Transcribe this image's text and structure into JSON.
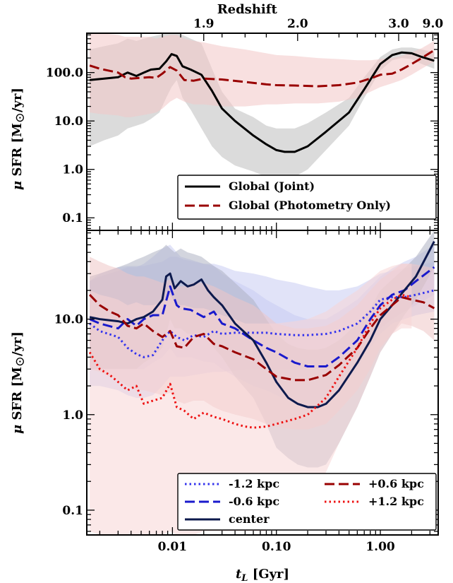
{
  "chart_data": [
    {
      "type": "line",
      "panel": "top",
      "xlabel": "t_L [Gyr]",
      "xlabel_var": "t",
      "xlabel_sub": "L",
      "xlabel_unit": " [Gyr]",
      "ylabel": "μ SFR [M⊙/yr]",
      "ylabel_mu": "μ",
      "ylabel_text": " SFR [M",
      "ylabel_sun": "⊙",
      "ylabel_end": "/yr]",
      "x_scale": "log",
      "y_scale": "log",
      "xlim": [
        0.0015,
        3.6
      ],
      "ylim": [
        0.055,
        650
      ],
      "yticks": [
        0.1,
        1.0,
        10.0,
        100.0
      ],
      "ytick_labels": [
        "0.1",
        "1.0",
        "10.0",
        "100.0"
      ],
      "top_axis": {
        "label": "Redshift",
        "ticks": [
          {
            "t": 0.02,
            "label": "1.9"
          },
          {
            "t": 0.16,
            "label": "2.0"
          },
          {
            "t": 1.5,
            "label": "3.0"
          },
          {
            "t": 3.2,
            "label": "9.0"
          }
        ]
      },
      "legend": {
        "position": "lower-right",
        "entries": [
          "Global (Joint)",
          "Global (Photometry Only)"
        ]
      },
      "series": [
        {
          "name": "Global (Joint)",
          "color": "#000000",
          "style": "solid",
          "band_color": "#bdbdbd",
          "x": [
            0.0016,
            0.0022,
            0.003,
            0.0037,
            0.0045,
            0.0053,
            0.0062,
            0.0075,
            0.0087,
            0.0098,
            0.011,
            0.0125,
            0.015,
            0.019,
            0.024,
            0.03,
            0.04,
            0.06,
            0.08,
            0.1,
            0.12,
            0.15,
            0.2,
            0.3,
            0.5,
            0.7,
            1.0,
            1.3,
            1.6,
            2.0,
            2.5,
            3.3
          ],
          "y": [
            70,
            75,
            80,
            100,
            85,
            100,
            115,
            120,
            170,
            240,
            220,
            135,
            115,
            90,
            42,
            18,
            10,
            5,
            3.3,
            2.5,
            2.3,
            2.3,
            3,
            6,
            15,
            45,
            150,
            230,
            260,
            250,
            210,
            175
          ],
          "lo": [
            3,
            4,
            5,
            7,
            8,
            9,
            11,
            15,
            30,
            50,
            70,
            30,
            17,
            7,
            3,
            1.8,
            1.2,
            0.9,
            0.7,
            0.6,
            0.6,
            0.7,
            1,
            2.5,
            8,
            30,
            110,
            180,
            200,
            190,
            150,
            120
          ],
          "hi": [
            300,
            350,
            400,
            500,
            450,
            500,
            550,
            600,
            650,
            650,
            650,
            600,
            500,
            400,
            120,
            40,
            18,
            12,
            8,
            7,
            7,
            7,
            9,
            15,
            30,
            80,
            210,
            300,
            330,
            330,
            300,
            260
          ]
        },
        {
          "name": "Global (Photometry Only)",
          "color": "#990000",
          "style": "dashed",
          "band_color": "#f2c7c7",
          "x": [
            0.0016,
            0.002,
            0.003,
            0.0035,
            0.004,
            0.005,
            0.006,
            0.007,
            0.008,
            0.0095,
            0.011,
            0.013,
            0.016,
            0.02,
            0.03,
            0.05,
            0.08,
            0.1,
            0.15,
            0.25,
            0.4,
            0.6,
            0.8,
            1.0,
            1.3,
            1.6,
            2.0,
            2.5,
            3.3
          ],
          "y": [
            140,
            120,
            100,
            80,
            75,
            78,
            80,
            78,
            95,
            130,
            110,
            70,
            68,
            75,
            72,
            64,
            57,
            55,
            54,
            52,
            55,
            62,
            75,
            90,
            95,
            115,
            150,
            200,
            290
          ],
          "lo": [
            15,
            14,
            13,
            12,
            12,
            13,
            14,
            15,
            18,
            25,
            30,
            25,
            22,
            22,
            20,
            20,
            22,
            22,
            23,
            23,
            25,
            30,
            40,
            50,
            60,
            70,
            90,
            120,
            170
          ],
          "hi": [
            650,
            650,
            600,
            550,
            550,
            550,
            550,
            500,
            550,
            600,
            600,
            500,
            450,
            420,
            350,
            300,
            250,
            230,
            220,
            200,
            190,
            180,
            180,
            190,
            200,
            220,
            260,
            320,
            450
          ]
        }
      ]
    },
    {
      "type": "line",
      "panel": "bottom",
      "xlabel": "t_L [Gyr]",
      "ylabel": "μ SFR [M⊙/yr]",
      "x_scale": "log",
      "y_scale": "log",
      "xlim": [
        0.0015,
        3.6
      ],
      "ylim": [
        0.055,
        85
      ],
      "xticks": [
        0.01,
        0.1,
        1.0
      ],
      "xtick_labels": [
        "0.01",
        "0.10",
        "1.00"
      ],
      "yticks": [
        0.1,
        1.0,
        10.0
      ],
      "ytick_labels": [
        "0.1",
        "1.0",
        "10.0"
      ],
      "legend": {
        "position": "lower-right",
        "columns": 2,
        "entries": [
          "-1.2 kpc",
          "+0.6 kpc",
          "-0.6 kpc",
          "+1.2 kpc",
          "center"
        ]
      },
      "series": [
        {
          "name": "-1.2 kpc",
          "color": "#3333ee",
          "style": "dotted",
          "band_color": "#c8ccf2",
          "x": [
            0.0016,
            0.002,
            0.003,
            0.0037,
            0.0045,
            0.0053,
            0.0065,
            0.008,
            0.0095,
            0.011,
            0.013,
            0.016,
            0.02,
            0.025,
            0.03,
            0.04,
            0.06,
            0.08,
            0.1,
            0.15,
            0.2,
            0.3,
            0.4,
            0.6,
            0.8,
            1.0,
            1.3,
            1.7,
            2.2,
            3.3
          ],
          "y": [
            9,
            7.5,
            6.5,
            5,
            4.3,
            4,
            4.2,
            6,
            7.5,
            6.5,
            6,
            6.8,
            6.5,
            7.5,
            7,
            7.2,
            7.2,
            7.2,
            7,
            6.8,
            6.8,
            7,
            7.5,
            9,
            12,
            16,
            17,
            17,
            18,
            20
          ],
          "lo": [
            2,
            2,
            1.8,
            1.6,
            1.5,
            1.5,
            1.6,
            2,
            2.5,
            2.5,
            2.5,
            2.6,
            2.7,
            2.8,
            2.8,
            2.9,
            3,
            3,
            3,
            3,
            3,
            3,
            3.3,
            4,
            5,
            7,
            9,
            10,
            11,
            12
          ],
          "hi": [
            25,
            30,
            35,
            36,
            36,
            36,
            38,
            40,
            45,
            45,
            42,
            40,
            38,
            38,
            36,
            32,
            30,
            28,
            26,
            24,
            22,
            20,
            20,
            22,
            26,
            30,
            32,
            34,
            36,
            40
          ]
        },
        {
          "name": "-0.6 kpc",
          "color": "#1a1acc",
          "style": "dashed",
          "band_color": "#c8ccf2",
          "x": [
            0.0016,
            0.002,
            0.003,
            0.0037,
            0.0045,
            0.0053,
            0.0065,
            0.008,
            0.0095,
            0.011,
            0.012,
            0.015,
            0.02,
            0.025,
            0.03,
            0.04,
            0.06,
            0.08,
            0.1,
            0.15,
            0.2,
            0.3,
            0.4,
            0.6,
            0.8,
            1.0,
            1.3,
            1.7,
            2.2,
            3.3
          ],
          "y": [
            10,
            9,
            8,
            10,
            8.5,
            10,
            11,
            11,
            22,
            14,
            13,
            12.5,
            10.5,
            12,
            9,
            8,
            6,
            5,
            4.5,
            3.5,
            3.2,
            3.2,
            4,
            6,
            10,
            14,
            18,
            20,
            25,
            35
          ],
          "lo": [
            3,
            3,
            3,
            3,
            3,
            3,
            3.5,
            4,
            5,
            4,
            4,
            4,
            3.6,
            3.5,
            3,
            2.5,
            2,
            1.8,
            1.6,
            1.3,
            1.2,
            1.3,
            1.8,
            3,
            5.5,
            8,
            10,
            12,
            14,
            18
          ],
          "hi": [
            25,
            28,
            32,
            35,
            35,
            38,
            45,
            55,
            60,
            50,
            45,
            42,
            38,
            36,
            30,
            25,
            20,
            16,
            14,
            11,
            10,
            10,
            12,
            16,
            22,
            28,
            34,
            40,
            45,
            60
          ]
        },
        {
          "name": "center",
          "color": "#0d1a4d",
          "style": "solid",
          "band_color": "#aeb3c2",
          "x": [
            0.0016,
            0.002,
            0.003,
            0.0037,
            0.0045,
            0.0053,
            0.0065,
            0.008,
            0.0087,
            0.0095,
            0.0105,
            0.012,
            0.014,
            0.016,
            0.019,
            0.022,
            0.025,
            0.03,
            0.04,
            0.06,
            0.08,
            0.1,
            0.13,
            0.16,
            0.2,
            0.25,
            0.3,
            0.4,
            0.6,
            0.8,
            1.0,
            1.3,
            1.7,
            2.2,
            3.3
          ],
          "y": [
            10.5,
            10,
            9.5,
            9,
            10,
            10.5,
            12,
            16,
            28,
            30,
            21,
            25,
            22,
            23,
            26,
            20,
            17,
            14,
            9,
            6,
            3.5,
            2.2,
            1.5,
            1.3,
            1.2,
            1.2,
            1.3,
            1.8,
            3.5,
            6,
            10,
            14,
            20,
            28,
            65
          ],
          "lo": [
            3,
            3,
            3,
            3,
            3,
            3.5,
            4,
            5,
            7,
            10,
            8,
            8,
            7,
            7,
            7,
            6,
            5,
            4,
            2.5,
            1.5,
            0.8,
            0.45,
            0.35,
            0.3,
            0.28,
            0.28,
            0.3,
            0.5,
            1.2,
            2.5,
            4.5,
            7,
            11,
            16,
            35
          ],
          "hi": [
            28,
            30,
            35,
            38,
            42,
            45,
            50,
            55,
            60,
            55,
            50,
            55,
            50,
            48,
            45,
            40,
            36,
            32,
            24,
            16,
            10,
            7,
            5.5,
            5,
            4.8,
            4.8,
            5,
            6,
            9,
            13,
            20,
            26,
            34,
            45,
            85
          ]
        },
        {
          "name": "+0.6 kpc",
          "color": "#990000",
          "style": "dashed",
          "band_color": "#efc7c7",
          "x": [
            0.0016,
            0.002,
            0.0025,
            0.003,
            0.0037,
            0.0045,
            0.0053,
            0.0065,
            0.008,
            0.0095,
            0.011,
            0.013,
            0.016,
            0.02,
            0.025,
            0.03,
            0.04,
            0.06,
            0.08,
            0.1,
            0.15,
            0.2,
            0.3,
            0.4,
            0.6,
            0.8,
            1.0,
            1.3,
            1.6,
            2.0,
            2.6,
            3.3
          ],
          "y": [
            18,
            14,
            12,
            11,
            8.5,
            8,
            9,
            7.5,
            6.5,
            7.5,
            5.2,
            5,
            6.5,
            7,
            5.5,
            5.2,
            4.5,
            3.8,
            3,
            2.5,
            2.3,
            2.3,
            2.6,
            3.3,
            5,
            8,
            11,
            14,
            17,
            16,
            15,
            13
          ],
          "lo": [
            3,
            2.8,
            2.5,
            2.3,
            2,
            1.8,
            1.8,
            1.7,
            1.6,
            1.7,
            1.4,
            1.3,
            1.4,
            1.4,
            1.2,
            1.1,
            1,
            0.9,
            0.8,
            0.75,
            0.7,
            0.7,
            0.8,
            1.1,
            1.8,
            3,
            5,
            7,
            9,
            8.5,
            7.5,
            6
          ],
          "hi": [
            45,
            40,
            36,
            34,
            30,
            28,
            28,
            26,
            24,
            26,
            22,
            22,
            24,
            24,
            22,
            20,
            17,
            14,
            11,
            9,
            8,
            8,
            8.5,
            10,
            14,
            20,
            26,
            32,
            38,
            38,
            36,
            34
          ]
        },
        {
          "name": "+1.2 kpc",
          "color": "#ee1111",
          "style": "dotted",
          "band_color": "#f8d6d6",
          "x": [
            0.0016,
            0.002,
            0.0025,
            0.003,
            0.0037,
            0.0045,
            0.0053,
            0.0065,
            0.008,
            0.0095,
            0.011,
            0.013,
            0.016,
            0.02,
            0.025,
            0.03,
            0.04,
            0.05,
            0.06,
            0.08,
            0.1,
            0.15,
            0.2,
            0.3,
            0.4,
            0.6,
            0.8,
            1.0,
            1.3,
            1.6,
            2.0
          ],
          "y": [
            4.5,
            3,
            2.6,
            2.2,
            1.8,
            2,
            1.3,
            1.4,
            1.5,
            2.1,
            1.2,
            1.1,
            0.9,
            1.05,
            0.95,
            0.9,
            0.8,
            0.75,
            0.73,
            0.75,
            0.8,
            0.9,
            1,
            1.5,
            2.5,
            5,
            9,
            13,
            16,
            18,
            17
          ],
          "lo": [
            0.06,
            0.055,
            0.055,
            0.055,
            0.055,
            0.055,
            0.055,
            0.055,
            0.055,
            0.06,
            0.055,
            0.055,
            0.055,
            0.06,
            0.06,
            0.06,
            0.06,
            0.06,
            0.06,
            0.06,
            0.07,
            0.09,
            0.12,
            0.25,
            0.5,
            1.2,
            2.5,
            4.5,
            7,
            8,
            8
          ],
          "hi": [
            20,
            18,
            17,
            16,
            14,
            15,
            14,
            14,
            15,
            18,
            14,
            14,
            13,
            13,
            12,
            11,
            10,
            9,
            9,
            9,
            9,
            9.5,
            10,
            12,
            15,
            20,
            26,
            32,
            36,
            38,
            38
          ]
        }
      ]
    }
  ]
}
